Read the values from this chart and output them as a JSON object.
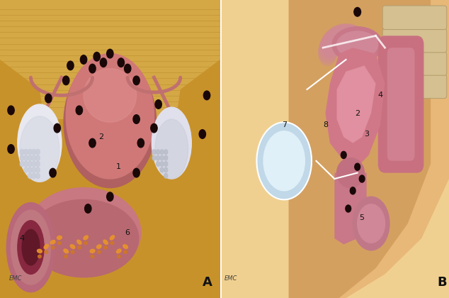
{
  "figsize": [
    6.34,
    4.2
  ],
  "dpi": 100,
  "background_color": "#ffffff",
  "label_A": "A",
  "label_B": "B",
  "label_fontsize": 13,
  "label_fontweight": "bold",
  "panel_A_bg": "#c8922a",
  "panel_A_mid": "#d4a040",
  "panel_B_bg": "#e8c080",
  "emc_fontsize": 6,
  "number_fontsize": 8
}
